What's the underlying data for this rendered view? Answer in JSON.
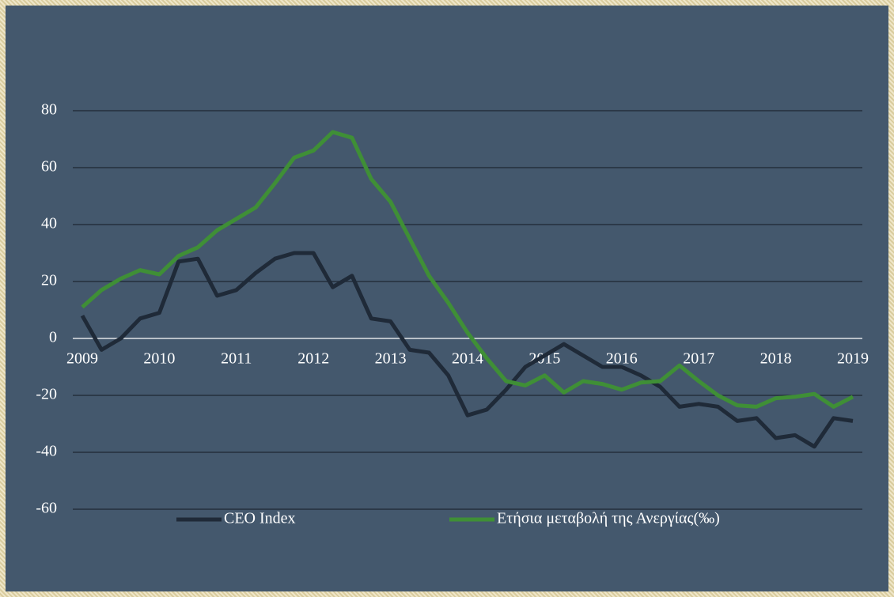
{
  "chart_data": {
    "type": "line",
    "x": [
      2009,
      2009.25,
      2009.5,
      2009.75,
      2010,
      2010.25,
      2010.5,
      2010.75,
      2011,
      2011.25,
      2011.5,
      2011.75,
      2012,
      2012.25,
      2012.5,
      2012.75,
      2013,
      2013.25,
      2013.5,
      2013.75,
      2014,
      2014.25,
      2014.5,
      2014.75,
      2015,
      2015.25,
      2015.5,
      2015.75,
      2016,
      2016.25,
      2016.5,
      2016.75,
      2017,
      2017.25,
      2017.5,
      2017.75,
      2018,
      2018.25,
      2018.5,
      2018.75,
      2019
    ],
    "series": [
      {
        "name": "CEO Index",
        "color": "#1f2a38",
        "values": [
          8,
          -4,
          0,
          7,
          9,
          27,
          28,
          15,
          17,
          23,
          28,
          30,
          30,
          18,
          22,
          7,
          6,
          -4,
          -5,
          -13,
          -27,
          -25,
          -18,
          -10,
          -6,
          -2,
          -6,
          -10,
          -10,
          -13,
          -17,
          -24,
          -23,
          -24,
          -29,
          -28,
          -35,
          -34,
          -38,
          -28,
          -29
        ]
      },
      {
        "name": "Ετήσια μεταβολή της Ανεργίας(‰)",
        "color": "#3f8f36",
        "values": [
          11,
          17,
          21,
          24,
          22.5,
          29,
          32,
          38,
          42,
          46,
          54.5,
          63.5,
          66,
          72.5,
          70.5,
          56,
          48,
          35,
          22,
          12.5,
          2,
          -7,
          -15,
          -16.5,
          -13,
          -19,
          -15,
          -16,
          -18,
          -15.5,
          -15,
          -9.5,
          -15,
          -20,
          -23.5,
          -24,
          -21,
          -20.5,
          -19.5,
          -24,
          -20.5
        ]
      }
    ],
    "xlim": [
      2009,
      2019
    ],
    "xticks": [
      2009,
      2010,
      2011,
      2012,
      2013,
      2014,
      2015,
      2016,
      2017,
      2018,
      2019
    ],
    "ylim": [
      -60,
      80
    ],
    "yticks": [
      -60,
      -40,
      -20,
      0,
      20,
      40,
      60,
      80
    ],
    "grid": true,
    "legend": "bottom"
  }
}
